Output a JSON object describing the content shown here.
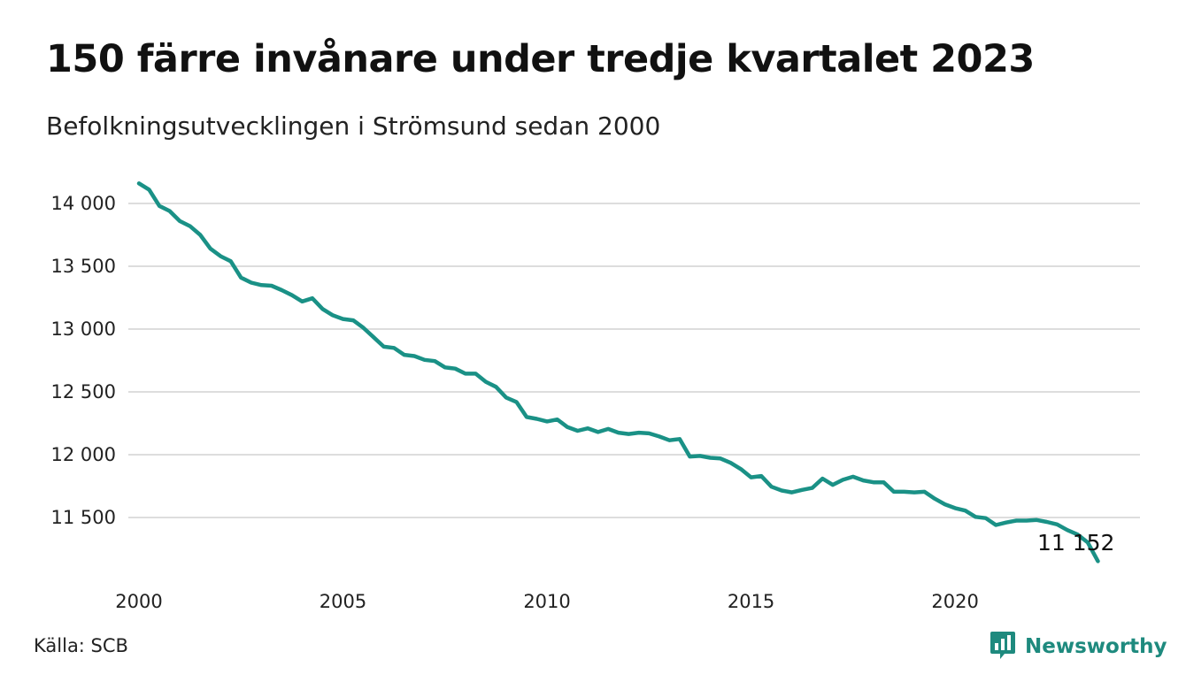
{
  "title": "150 färre invånare under tredje kvartalet 2023",
  "subtitle": "Befolkningsutvecklingen i Strömsund sedan 2000",
  "source": "Källa: SCB",
  "brand": {
    "name": "Newsworthy",
    "color": "#1e8a7e",
    "icon": "newsworthy-logo-icon"
  },
  "chart_data": {
    "type": "line",
    "title": "150 färre invånare under tredje kvartalet 2023",
    "subtitle": "Befolkningsutvecklingen i Strömsund sedan 2000",
    "xlabel": "",
    "ylabel": "",
    "grid": true,
    "line_color": "#1a9186",
    "xlim": [
      2000,
      2023.75
    ],
    "ylim": [
      11100,
      14200
    ],
    "y_ticks": [
      11500,
      12000,
      12500,
      13000,
      13500,
      14000
    ],
    "y_tick_labels": [
      "11 500",
      "12 000",
      "12 500",
      "13 000",
      "13 500",
      "14 000"
    ],
    "x_ticks": [
      2000,
      2005,
      2010,
      2015,
      2020
    ],
    "x_tick_labels": [
      "2000",
      "2005",
      "2010",
      "2015",
      "2020"
    ],
    "end_label": "11 152",
    "series": [
      {
        "x": [
          2000.0,
          2000.25,
          2000.5,
          2000.75,
          2001.0,
          2001.25,
          2001.5,
          2001.75,
          2002.0,
          2002.25,
          2002.5,
          2002.75,
          2003.0,
          2003.25,
          2003.5,
          2003.75,
          2004.0,
          2004.25,
          2004.5,
          2004.75,
          2005.0,
          2005.25,
          2005.5,
          2005.75,
          2006.0,
          2006.25,
          2006.5,
          2006.75,
          2007.0,
          2007.25,
          2007.5,
          2007.75,
          2008.0,
          2008.25,
          2008.5,
          2008.75,
          2009.0,
          2009.25,
          2009.5,
          2009.75,
          2010.0,
          2010.25,
          2010.5,
          2010.75,
          2011.0,
          2011.25,
          2011.5,
          2011.75,
          2012.0,
          2012.25,
          2012.5,
          2012.75,
          2013.0,
          2013.25,
          2013.5,
          2013.75,
          2014.0,
          2014.25,
          2014.5,
          2014.75,
          2015.0,
          2015.25,
          2015.5,
          2015.75,
          2016.0,
          2016.25,
          2016.5,
          2016.75,
          2017.0,
          2017.25,
          2017.5,
          2017.75,
          2018.0,
          2018.25,
          2018.5,
          2018.75,
          2019.0,
          2019.25,
          2019.5,
          2019.75,
          2020.0,
          2020.25,
          2020.5,
          2020.75,
          2021.0,
          2021.25,
          2021.5,
          2021.75,
          2022.0,
          2022.25,
          2022.5,
          2022.75,
          2023.0,
          2023.25,
          2023.5
        ],
        "values": [
          14160,
          14110,
          13980,
          13940,
          13860,
          13820,
          13750,
          13640,
          13580,
          13540,
          13410,
          13370,
          13350,
          13345,
          13310,
          13270,
          13220,
          13245,
          13160,
          13110,
          13080,
          13070,
          13010,
          12935,
          12860,
          12850,
          12795,
          12785,
          12755,
          12745,
          12695,
          12685,
          12645,
          12645,
          12580,
          12540,
          12455,
          12420,
          12300,
          12285,
          12265,
          12280,
          12220,
          12190,
          12210,
          12180,
          12205,
          12175,
          12165,
          12175,
          12170,
          12145,
          12115,
          12125,
          11985,
          11990,
          11975,
          11970,
          11935,
          11885,
          11820,
          11830,
          11745,
          11715,
          11700,
          11720,
          11735,
          11810,
          11760,
          11800,
          11825,
          11795,
          11780,
          11780,
          11705,
          11705,
          11700,
          11705,
          11650,
          11605,
          11575,
          11555,
          11505,
          11495,
          11440,
          11460,
          11475,
          11475,
          11480,
          11465,
          11445,
          11400,
          11365,
          11302,
          11152
        ]
      }
    ]
  }
}
